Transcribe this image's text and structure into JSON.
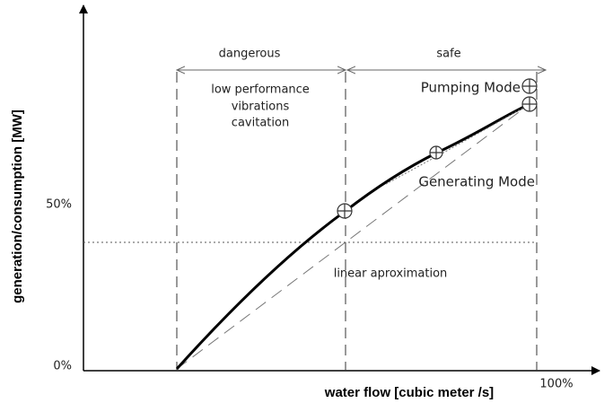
{
  "axes": {
    "x_label": "water flow [cubic meter /s]",
    "y_label": "generation/consumption [MW]",
    "y_tick_low": "0%",
    "y_tick_mid": "50%",
    "x_tick_high": "100%"
  },
  "regions": {
    "dangerous": "dangerous",
    "safe": "safe"
  },
  "notes": {
    "line1": "low performance",
    "line2": "vibrations",
    "line3": "cavitation"
  },
  "curves": {
    "pumping": "Pumping Mode",
    "generating": "Generating Mode",
    "linear": "linear aproximation"
  }
}
